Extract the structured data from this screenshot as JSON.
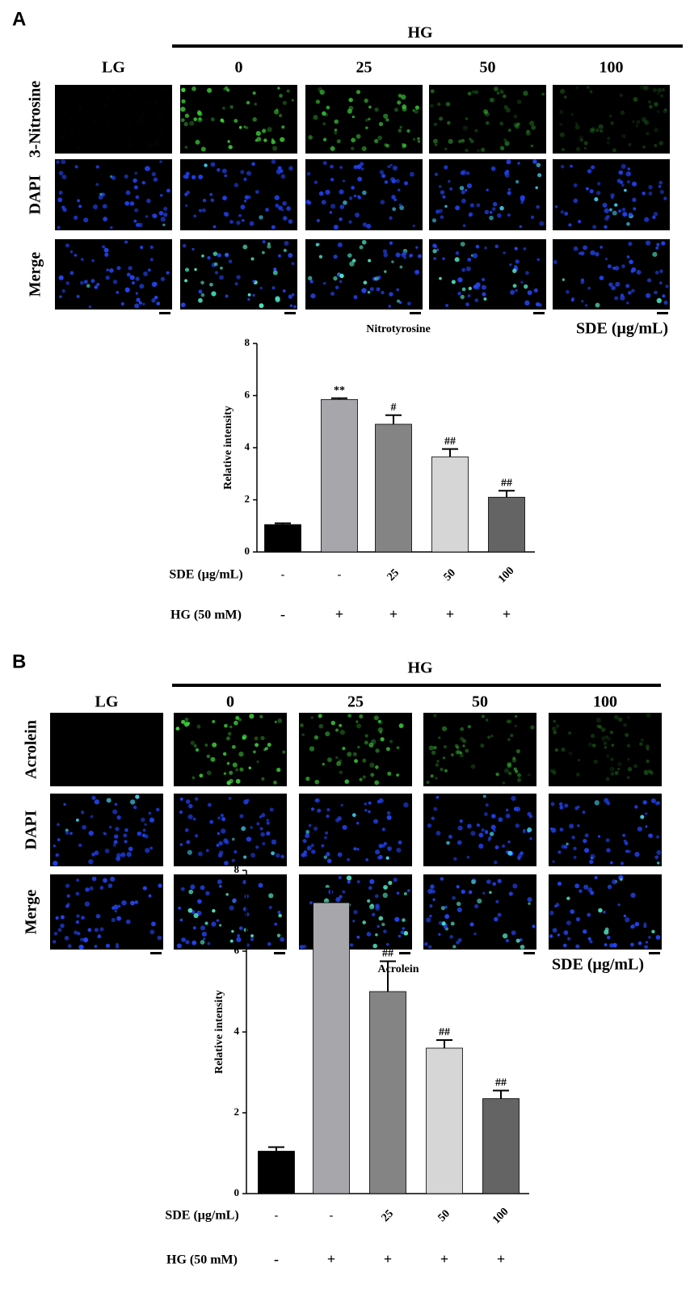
{
  "figure": [
    {
      "label": "A",
      "group": "HG",
      "columns": [
        "LG",
        "0",
        "25",
        "50",
        "100"
      ],
      "rows": [
        "3-Nitrosine",
        "DAPI",
        "Merge"
      ],
      "caption": "Nitrotyrosine",
      "unit": "SDE (μg/mL)"
    },
    {
      "label": "B",
      "group": "HG",
      "columns": [
        "LG",
        "0",
        "25",
        "50",
        "100"
      ],
      "rows": [
        "Acrolein",
        "DAPI",
        "Merge"
      ],
      "caption": "Acrolein",
      "unit": "SDE (μg/mL)"
    }
  ],
  "chart_data": [
    {
      "type": "bar",
      "y_label": "Relative intensity",
      "x_label": "SDE (μg/mL)",
      "categories": [
        "-",
        "-",
        "25",
        "50",
        "100"
      ],
      "x2_label": "HG (50 mM)",
      "categories2": [
        "-",
        "+",
        "+",
        "+",
        "+"
      ],
      "values": [
        1.05,
        5.85,
        4.9,
        3.65,
        2.1
      ],
      "errors": [
        0.05,
        0.05,
        0.35,
        0.3,
        0.25
      ],
      "annotations": [
        null,
        "**",
        "#",
        "##",
        "##"
      ],
      "colors": [
        "#000000",
        "#a7a7ab",
        "#848484",
        "#d6d6d6",
        "#646464"
      ],
      "ylim": [
        0,
        8
      ],
      "yticks": [
        0,
        2,
        4,
        6,
        8
      ]
    },
    {
      "type": "bar",
      "y_label": "Relative intensity",
      "x_label": "SDE (μg/mL)",
      "categories": [
        "-",
        "-",
        "25",
        "50",
        "100"
      ],
      "x2_label": "HG (50 mM)",
      "categories2": [
        "-",
        "+",
        "+",
        "+",
        "+"
      ],
      "values": [
        1.05,
        7.2,
        5.0,
        3.6,
        2.35
      ],
      "errors": [
        0.1,
        0.35,
        0.75,
        0.2,
        0.2
      ],
      "annotations": [
        null,
        "**",
        "##",
        "##",
        "##"
      ],
      "colors": [
        "#000000",
        "#a7a7ab",
        "#848484",
        "#d6d6d6",
        "#646464"
      ],
      "ylim": [
        0,
        8
      ],
      "yticks": [
        0,
        2,
        4,
        6,
        8
      ]
    }
  ]
}
